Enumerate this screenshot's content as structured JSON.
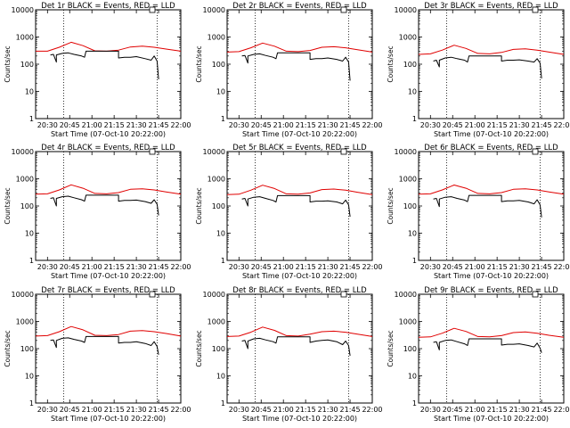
{
  "colors": {
    "events": "#000000",
    "lld": "#e00000",
    "axis": "#000000"
  },
  "shared": {
    "y_tick_labels": [
      "1",
      "10",
      "100",
      "1000",
      "10000"
    ],
    "x_tick_labels": [
      "20:30",
      "20:45",
      "21:00",
      "21:15",
      "21:30",
      "21:45",
      "22:00"
    ],
    "y_axis_label": "Counts/sec",
    "x_axis_label": "Start Time (07-Oct-10 20:22:00)"
  },
  "chart_data": [
    {
      "type": "line",
      "title": "Det 1r BLACK = Events, RED = LLD",
      "xlabel": "Start Time (07-Oct-10 20:22:00)",
      "ylabel": "Counts/sec",
      "x_unit": "time of day (HH:MM, 07-Oct-10)",
      "xlim": [
        "20:22",
        "22:00"
      ],
      "ylim": [
        1,
        10000
      ],
      "y_scale": "log",
      "marker_times": [
        "20:41",
        "21:44"
      ],
      "series": [
        {
          "name": "LLD",
          "color": "red",
          "x": [
            "20:22",
            "20:30",
            "20:38",
            "20:46",
            "20:54",
            "21:02",
            "21:10",
            "21:18",
            "21:26",
            "21:34",
            "21:42",
            "21:50",
            "22:00"
          ],
          "y": [
            300,
            300,
            420,
            640,
            480,
            310,
            300,
            330,
            430,
            460,
            420,
            360,
            300
          ]
        },
        {
          "name": "Events",
          "color": "black",
          "x": [
            "20:32",
            "20:34",
            "20:36",
            "20:36",
            "20:40",
            "20:44",
            "20:48",
            "20:53",
            "20:55",
            "20:56",
            "21:00",
            "21:04",
            "21:08",
            "21:12",
            "21:18",
            "21:18",
            "21:22",
            "21:26",
            "21:30",
            "21:36",
            "21:40",
            "21:42",
            "21:44",
            "21:45"
          ],
          "y": [
            220,
            230,
            120,
            220,
            250,
            260,
            230,
            200,
            180,
            300,
            300,
            300,
            300,
            300,
            300,
            170,
            180,
            180,
            190,
            160,
            140,
            200,
            130,
            28
          ]
        }
      ]
    },
    {
      "type": "line",
      "title": "Det 2r BLACK = Events, RED = LLD",
      "xlabel": "Start Time (07-Oct-10 20:22:00)",
      "ylabel": "Counts/sec",
      "x_unit": "time of day (HH:MM, 07-Oct-10)",
      "xlim": [
        "20:22",
        "22:00"
      ],
      "ylim": [
        1,
        10000
      ],
      "y_scale": "log",
      "marker_times": [
        "20:41",
        "21:44"
      ],
      "series": [
        {
          "name": "LLD",
          "color": "red",
          "x": [
            "20:22",
            "20:30",
            "20:38",
            "20:46",
            "20:54",
            "21:02",
            "21:10",
            "21:18",
            "21:26",
            "21:34",
            "21:42",
            "21:50",
            "22:00"
          ],
          "y": [
            280,
            290,
            400,
            600,
            460,
            300,
            290,
            320,
            420,
            440,
            400,
            340,
            280
          ]
        },
        {
          "name": "Events",
          "color": "black",
          "x": [
            "20:32",
            "20:34",
            "20:36",
            "20:36",
            "20:40",
            "20:44",
            "20:48",
            "20:53",
            "20:55",
            "20:56",
            "21:00",
            "21:04",
            "21:08",
            "21:12",
            "21:18",
            "21:18",
            "21:22",
            "21:26",
            "21:30",
            "21:36",
            "21:40",
            "21:42",
            "21:44",
            "21:45"
          ],
          "y": [
            200,
            210,
            110,
            200,
            230,
            240,
            210,
            180,
            160,
            260,
            260,
            260,
            260,
            260,
            260,
            150,
            160,
            160,
            170,
            150,
            130,
            180,
            120,
            25
          ]
        }
      ]
    },
    {
      "type": "line",
      "title": "Det 3r BLACK = Events, RED = LLD",
      "xlabel": "Start Time (07-Oct-10 20:22:00)",
      "ylabel": "Counts/sec",
      "x_unit": "time of day (HH:MM, 07-Oct-10)",
      "xlim": [
        "20:22",
        "22:00"
      ],
      "ylim": [
        1,
        10000
      ],
      "y_scale": "log",
      "marker_times": [
        "20:41",
        "21:44"
      ],
      "series": [
        {
          "name": "LLD",
          "color": "red",
          "x": [
            "20:22",
            "20:30",
            "20:38",
            "20:46",
            "20:54",
            "21:02",
            "21:10",
            "21:18",
            "21:26",
            "21:34",
            "21:42",
            "21:50",
            "22:00"
          ],
          "y": [
            230,
            240,
            330,
            500,
            380,
            250,
            240,
            270,
            350,
            370,
            330,
            280,
            230
          ]
        },
        {
          "name": "Events",
          "color": "black",
          "x": [
            "20:32",
            "20:34",
            "20:36",
            "20:36",
            "20:40",
            "20:44",
            "20:48",
            "20:53",
            "20:55",
            "20:56",
            "21:00",
            "21:04",
            "21:08",
            "21:12",
            "21:18",
            "21:18",
            "21:22",
            "21:26",
            "21:30",
            "21:36",
            "21:40",
            "21:42",
            "21:44",
            "21:45"
          ],
          "y": [
            130,
            140,
            80,
            140,
            170,
            180,
            160,
            140,
            120,
            200,
            200,
            200,
            200,
            200,
            200,
            130,
            140,
            140,
            145,
            130,
            120,
            160,
            110,
            30
          ]
        }
      ]
    },
    {
      "type": "line",
      "title": "Det 4r BLACK = Events, RED = LLD",
      "xlabel": "Start Time (07-Oct-10 20:22:00)",
      "ylabel": "Counts/sec",
      "x_unit": "time of day (HH:MM, 07-Oct-10)",
      "xlim": [
        "20:22",
        "22:00"
      ],
      "ylim": [
        1,
        10000
      ],
      "y_scale": "log",
      "marker_times": [
        "20:41",
        "21:44"
      ],
      "series": [
        {
          "name": "LLD",
          "color": "red",
          "x": [
            "20:22",
            "20:30",
            "20:38",
            "20:46",
            "20:54",
            "21:02",
            "21:10",
            "21:18",
            "21:26",
            "21:34",
            "21:42",
            "21:50",
            "22:00"
          ],
          "y": [
            270,
            280,
            390,
            600,
            450,
            290,
            280,
            310,
            410,
            430,
            390,
            330,
            270
          ]
        },
        {
          "name": "Events",
          "color": "black",
          "x": [
            "20:32",
            "20:34",
            "20:36",
            "20:36",
            "20:40",
            "20:44",
            "20:48",
            "20:53",
            "20:55",
            "20:56",
            "21:00",
            "21:04",
            "21:08",
            "21:12",
            "21:18",
            "21:18",
            "21:22",
            "21:26",
            "21:30",
            "21:36",
            "21:40",
            "21:42",
            "21:44",
            "21:45"
          ],
          "y": [
            190,
            200,
            100,
            190,
            220,
            230,
            200,
            170,
            150,
            250,
            250,
            250,
            250,
            250,
            250,
            150,
            160,
            160,
            165,
            145,
            125,
            170,
            115,
            45
          ]
        }
      ]
    },
    {
      "type": "line",
      "title": "Det 5r BLACK = Events, RED = LLD",
      "xlabel": "Start Time (07-Oct-10 20:22:00)",
      "ylabel": "Counts/sec",
      "x_unit": "time of day (HH:MM, 07-Oct-10)",
      "xlim": [
        "20:22",
        "22:00"
      ],
      "ylim": [
        1,
        10000
      ],
      "y_scale": "log",
      "marker_times": [
        "20:41",
        "21:44"
      ],
      "series": [
        {
          "name": "LLD",
          "color": "red",
          "x": [
            "20:22",
            "20:30",
            "20:38",
            "20:46",
            "20:54",
            "21:02",
            "21:10",
            "21:18",
            "21:26",
            "21:34",
            "21:42",
            "21:50",
            "22:00"
          ],
          "y": [
            260,
            270,
            380,
            580,
            440,
            280,
            270,
            300,
            400,
            420,
            380,
            320,
            260
          ]
        },
        {
          "name": "Events",
          "color": "black",
          "x": [
            "20:32",
            "20:34",
            "20:36",
            "20:36",
            "20:40",
            "20:44",
            "20:48",
            "20:53",
            "20:55",
            "20:56",
            "21:00",
            "21:04",
            "21:08",
            "21:12",
            "21:18",
            "21:18",
            "21:22",
            "21:26",
            "21:30",
            "21:36",
            "21:40",
            "21:42",
            "21:44",
            "21:45"
          ],
          "y": [
            180,
            190,
            100,
            180,
            210,
            220,
            190,
            160,
            140,
            240,
            240,
            240,
            240,
            240,
            240,
            140,
            150,
            150,
            155,
            140,
            120,
            165,
            110,
            40
          ]
        }
      ]
    },
    {
      "type": "line",
      "title": "Det 6r BLACK = Events, RED = LLD",
      "xlabel": "Start Time (07-Oct-10 20:22:00)",
      "ylabel": "Counts/sec",
      "x_unit": "time of day (HH:MM, 07-Oct-10)",
      "xlim": [
        "20:22",
        "22:00"
      ],
      "ylim": [
        1,
        10000
      ],
      "y_scale": "log",
      "marker_times": [
        "20:41",
        "21:44"
      ],
      "series": [
        {
          "name": "LLD",
          "color": "red",
          "x": [
            "20:22",
            "20:30",
            "20:38",
            "20:46",
            "20:54",
            "21:02",
            "21:10",
            "21:18",
            "21:26",
            "21:34",
            "21:42",
            "21:50",
            "22:00"
          ],
          "y": [
            270,
            280,
            390,
            590,
            450,
            290,
            280,
            310,
            410,
            430,
            390,
            330,
            270
          ]
        },
        {
          "name": "Events",
          "color": "black",
          "x": [
            "20:32",
            "20:34",
            "20:36",
            "20:36",
            "20:40",
            "20:44",
            "20:48",
            "20:53",
            "20:55",
            "20:56",
            "21:00",
            "21:04",
            "21:08",
            "21:12",
            "21:18",
            "21:18",
            "21:22",
            "21:26",
            "21:30",
            "21:36",
            "21:40",
            "21:42",
            "21:44",
            "21:45"
          ],
          "y": [
            180,
            190,
            95,
            180,
            210,
            220,
            190,
            165,
            145,
            245,
            245,
            245,
            245,
            245,
            245,
            145,
            155,
            155,
            160,
            140,
            120,
            170,
            110,
            38
          ]
        }
      ]
    },
    {
      "type": "line",
      "title": "Det 7r BLACK = Events, RED = LLD",
      "xlabel": "Start Time (07-Oct-10 20:22:00)",
      "ylabel": "Counts/sec",
      "x_unit": "time of day (HH:MM, 07-Oct-10)",
      "xlim": [
        "20:22",
        "22:00"
      ],
      "ylim": [
        1,
        10000
      ],
      "y_scale": "log",
      "marker_times": [
        "20:41",
        "21:44"
      ],
      "series": [
        {
          "name": "LLD",
          "color": "red",
          "x": [
            "20:22",
            "20:30",
            "20:38",
            "20:46",
            "20:54",
            "21:02",
            "21:10",
            "21:18",
            "21:26",
            "21:34",
            "21:42",
            "21:50",
            "22:00"
          ],
          "y": [
            290,
            300,
            420,
            650,
            490,
            310,
            300,
            330,
            440,
            460,
            420,
            360,
            290
          ]
        },
        {
          "name": "Events",
          "color": "black",
          "x": [
            "20:32",
            "20:34",
            "20:36",
            "20:36",
            "20:40",
            "20:44",
            "20:48",
            "20:53",
            "20:55",
            "20:56",
            "21:00",
            "21:04",
            "21:08",
            "21:12",
            "21:18",
            "21:18",
            "21:22",
            "21:26",
            "21:30",
            "21:36",
            "21:40",
            "21:42",
            "21:44",
            "21:45"
          ],
          "y": [
            200,
            210,
            110,
            200,
            240,
            250,
            220,
            190,
            170,
            280,
            280,
            280,
            280,
            280,
            280,
            160,
            170,
            170,
            180,
            155,
            130,
            180,
            120,
            60
          ]
        }
      ]
    },
    {
      "type": "line",
      "title": "Det 8r BLACK = Events, RED = LLD",
      "xlabel": "Start Time (07-Oct-10 20:22:00)",
      "ylabel": "Counts/sec",
      "x_unit": "time of day (HH:MM, 07-Oct-10)",
      "xlim": [
        "20:22",
        "22:00"
      ],
      "ylim": [
        1,
        10000
      ],
      "y_scale": "log",
      "marker_times": [
        "20:41",
        "21:44"
      ],
      "series": [
        {
          "name": "LLD",
          "color": "red",
          "x": [
            "20:22",
            "20:30",
            "20:38",
            "20:46",
            "20:54",
            "21:02",
            "21:10",
            "21:18",
            "21:26",
            "21:34",
            "21:42",
            "21:50",
            "22:00"
          ],
          "y": [
            280,
            290,
            400,
            620,
            470,
            300,
            290,
            340,
            420,
            440,
            400,
            340,
            280
          ]
        },
        {
          "name": "Events",
          "color": "black",
          "x": [
            "20:32",
            "20:34",
            "20:36",
            "20:36",
            "20:40",
            "20:44",
            "20:48",
            "20:53",
            "20:55",
            "20:56",
            "21:00",
            "21:04",
            "21:08",
            "21:12",
            "21:18",
            "21:18",
            "21:22",
            "21:26",
            "21:30",
            "21:36",
            "21:40",
            "21:42",
            "21:44",
            "21:45"
          ],
          "y": [
            190,
            200,
            100,
            190,
            230,
            240,
            210,
            180,
            160,
            270,
            270,
            270,
            270,
            270,
            270,
            170,
            190,
            200,
            210,
            180,
            140,
            190,
            130,
            55
          ]
        }
      ]
    },
    {
      "type": "line",
      "title": "Det 9r BLACK = Events, RED = LLD",
      "xlabel": "Start Time (07-Oct-10 20:22:00)",
      "ylabel": "Counts/sec",
      "x_unit": "time of day (HH:MM, 07-Oct-10)",
      "xlim": [
        "20:22",
        "22:00"
      ],
      "ylim": [
        1,
        10000
      ],
      "y_scale": "log",
      "marker_times": [
        "20:41",
        "21:44"
      ],
      "series": [
        {
          "name": "LLD",
          "color": "red",
          "x": [
            "20:22",
            "20:30",
            "20:38",
            "20:46",
            "20:54",
            "21:02",
            "21:10",
            "21:18",
            "21:26",
            "21:34",
            "21:42",
            "21:50",
            "22:00"
          ],
          "y": [
            260,
            270,
            370,
            560,
            430,
            280,
            270,
            300,
            390,
            410,
            370,
            310,
            260
          ]
        },
        {
          "name": "Events",
          "color": "black",
          "x": [
            "20:32",
            "20:34",
            "20:36",
            "20:36",
            "20:40",
            "20:44",
            "20:48",
            "20:53",
            "20:55",
            "20:56",
            "21:00",
            "21:04",
            "21:08",
            "21:12",
            "21:18",
            "21:18",
            "21:22",
            "21:26",
            "21:30",
            "21:36",
            "21:40",
            "21:42",
            "21:44",
            "21:45"
          ],
          "y": [
            170,
            180,
            90,
            170,
            200,
            210,
            180,
            150,
            130,
            230,
            230,
            230,
            230,
            230,
            230,
            135,
            145,
            145,
            150,
            130,
            115,
            160,
            105,
            70
          ]
        }
      ]
    }
  ]
}
